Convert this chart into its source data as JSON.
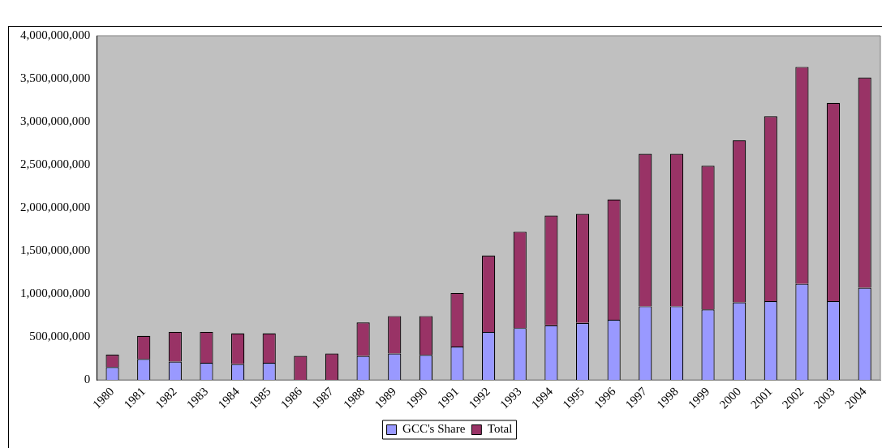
{
  "chart_data": {
    "type": "bar",
    "stacked": true,
    "categories": [
      "1980",
      "1981",
      "1982",
      "1983",
      "1984",
      "1985",
      "1986",
      "1987",
      "1988",
      "1989",
      "1990",
      "1991",
      "1992",
      "1993",
      "1994",
      "1995",
      "1996",
      "1997",
      "1998",
      "1999",
      "2000",
      "2001",
      "2002",
      "2003",
      "2004"
    ],
    "series": [
      {
        "name": "GCC's Share",
        "color": "#9999ff",
        "values": [
          148000000,
          244000000,
          212000000,
          198000000,
          184000000,
          198000000,
          0,
          0,
          279000000,
          307000000,
          290000000,
          387000000,
          557000000,
          603000000,
          635000000,
          663000000,
          699000000,
          855000000,
          855000000,
          819000000,
          901000000,
          915000000,
          1117000000,
          915000000,
          1071000000
        ]
      },
      {
        "name": "Total",
        "color": "#993366",
        "values": [
          145000000,
          268000000,
          346000000,
          360000000,
          357000000,
          343000000,
          279000000,
          307000000,
          389000000,
          435000000,
          452000000,
          624000000,
          886000000,
          1120000000,
          1276000000,
          1266000000,
          1397000000,
          1773000000,
          1773000000,
          1670000000,
          1883000000,
          2149000000,
          2521000000,
          2305000000,
          2443000000
        ]
      }
    ],
    "ylim": [
      0,
      4000000000
    ],
    "yticks": [
      {
        "value": 0,
        "label": "0"
      },
      {
        "value": 500000000,
        "label": "500,000,000"
      },
      {
        "value": 1000000000,
        "label": "1,000,000,000"
      },
      {
        "value": 1500000000,
        "label": "1,500,000,000"
      },
      {
        "value": 2000000000,
        "label": "2,000,000,000"
      },
      {
        "value": 2500000000,
        "label": "2,500,000,000"
      },
      {
        "value": 3000000000,
        "label": "3,000,000,000"
      },
      {
        "value": 3500000000,
        "label": "3,500,000,000"
      },
      {
        "value": 4000000000,
        "label": "4,000,000,000"
      }
    ],
    "grid": false,
    "legend": "bottom"
  }
}
